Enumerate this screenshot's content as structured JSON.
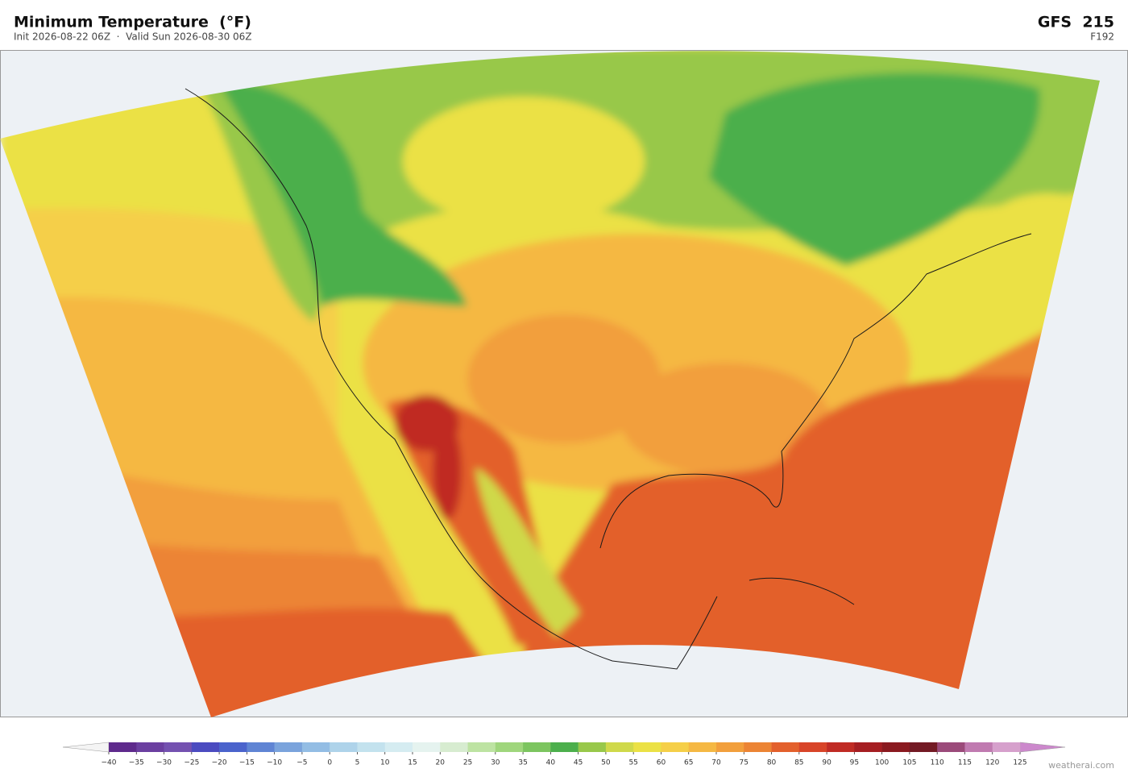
{
  "header": {
    "title": "Minimum Temperature  (°F)",
    "subtitle": "Init 2026-08-22 06Z  ·  Valid Sun 2026-08-30 06Z",
    "model": "GFS  215",
    "forecast_hour": "F192"
  },
  "colorbar": {
    "ticks": [
      {
        "value": -40,
        "label": "−40"
      },
      {
        "value": -35,
        "label": "−35"
      },
      {
        "value": -30,
        "label": "−30"
      },
      {
        "value": -25,
        "label": "−25"
      },
      {
        "value": -20,
        "label": "−20"
      },
      {
        "value": -15,
        "label": "−15"
      },
      {
        "value": -10,
        "label": "−10"
      },
      {
        "value": -5,
        "label": "−5"
      },
      0,
      5,
      10,
      15,
      20,
      25,
      30,
      35,
      40,
      45,
      50,
      55,
      60,
      65,
      70,
      75,
      80,
      85,
      90,
      95,
      100,
      105,
      110,
      115,
      120,
      125
    ],
    "colors": [
      "#5e2a8c",
      "#6b3fa0",
      "#7451b0",
      "#4b4bc0",
      "#4a63cc",
      "#5f84d4",
      "#7aa3dc",
      "#93bde4",
      "#aed3ea",
      "#c3e2ee",
      "#d5ecf1",
      "#e5f3ef",
      "#d7ecd0",
      "#bde3a2",
      "#9fd67c",
      "#7cc55f",
      "#4caf4c",
      "#98c84a",
      "#cfd94a",
      "#ebe145",
      "#f5cf48",
      "#f5b843",
      "#f29f3c",
      "#ec8434",
      "#e3602c",
      "#d84428",
      "#c02b24",
      "#a51e22",
      "#8a1a20",
      "#731a24",
      "#9b4a7a",
      "#c07ab0",
      "#d6a0cc"
    ],
    "under_color": "#f4f4f4",
    "over_color": "#cc88cc"
  },
  "footer": {
    "credit": "weatherai.com"
  }
}
